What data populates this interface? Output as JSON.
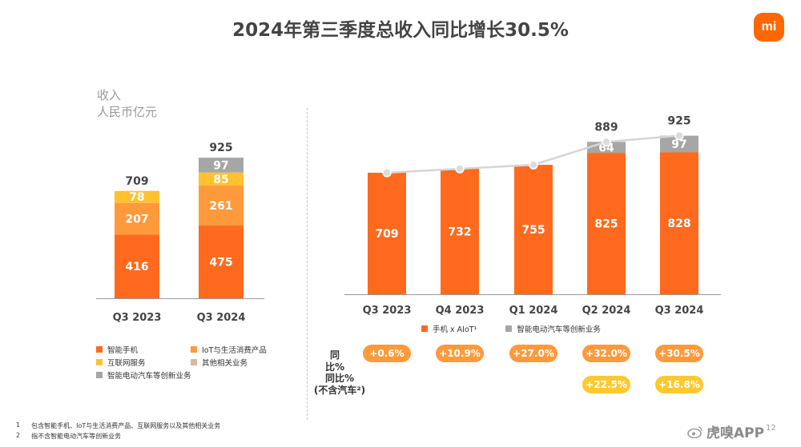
{
  "title": "2024年第三季度总收入同比增长30.5%",
  "logo": {
    "text": "mi",
    "color": "#ff6700"
  },
  "unit": {
    "line1": "收入",
    "line2": "人民币亿元"
  },
  "colors": {
    "orange": "#ff6a1f",
    "light_orange": "#ff9a3c",
    "yellow": "#ffc22e",
    "tan": "#d8b99a",
    "gray": "#a6a6a6",
    "line": "#d6d6d6",
    "pill_orange": "#ff9a3c",
    "pill_yellow": "#ffc82e"
  },
  "chart_data": [
    {
      "type": "bar",
      "stacked": true,
      "categories": [
        "Q3 2023",
        "Q3 2024"
      ],
      "series": [
        {
          "name": "智能手机",
          "values": [
            416,
            475
          ]
        },
        {
          "name": "IoT与生活消费产品",
          "values": [
            207,
            261
          ]
        },
        {
          "name": "互联网服务",
          "values": [
            78,
            85
          ]
        },
        {
          "name": "智能电动汽车等创新业务",
          "values": [
            0,
            97
          ]
        }
      ],
      "totals": [
        709,
        925
      ]
    },
    {
      "type": "bar",
      "stacked": true,
      "categories": [
        "Q3 2023",
        "Q4 2023",
        "Q1 2024",
        "Q2 2024",
        "Q3 2024"
      ],
      "series": [
        {
          "name": "手机 x AIoT",
          "values": [
            709,
            732,
            755,
            825,
            828
          ]
        },
        {
          "name": "智能电动汽车等创新业务",
          "values": [
            0,
            0,
            0,
            64,
            97
          ]
        }
      ],
      "totals": [
        709,
        732,
        755,
        889,
        925
      ]
    }
  ],
  "left_legend": [
    {
      "label": "智能手机",
      "color": "#ff6a1f"
    },
    {
      "label": "IoT与生活消费产品",
      "color": "#ff9a3c"
    },
    {
      "label": "互联网服务",
      "color": "#ffc22e"
    },
    {
      "label": "其他相关业务",
      "color": "#d8b99a"
    },
    {
      "label": "智能电动汽车等创新业务",
      "color": "#a6a6a6"
    }
  ],
  "right_legend": [
    {
      "label": "手机 x AIoT¹",
      "color": "#ff6a1f"
    },
    {
      "label": "智能电动汽车等创新业务",
      "color": "#a6a6a6"
    }
  ],
  "yoy": {
    "label": "同比%",
    "label2_line1": "同比%",
    "label2_line2": "(不含汽车²)",
    "values": [
      "+0.6%",
      "+10.9%",
      "+27.0%",
      "+32.0%",
      "+30.5%"
    ],
    "ex_auto": [
      "+22.5%",
      "+16.8%"
    ]
  },
  "footnotes": [
    {
      "num": "1",
      "text": "包含智能手机、IoT与生活消费产品、互联网服务以及其他相关业务"
    },
    {
      "num": "2",
      "text": "指不含智能电动汽车等创新业务"
    }
  ],
  "watermark": "虎嗅APP",
  "page_number": "12"
}
